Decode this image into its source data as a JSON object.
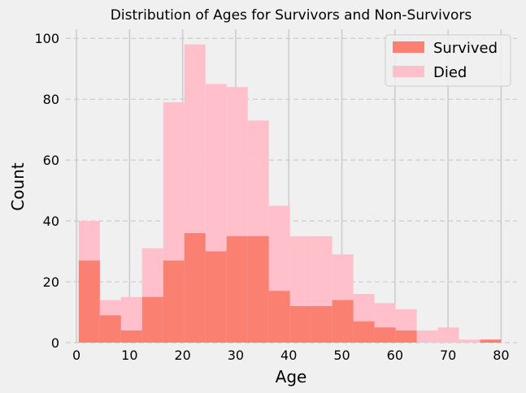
{
  "chart_data": {
    "type": "bar",
    "title": "Distribution of Ages for Survivors and Non-Survivors",
    "xlabel": "Age",
    "ylabel": "Count",
    "xlim": [
      -2,
      83
    ],
    "ylim": [
      0,
      103
    ],
    "xticks": [
      "0",
      "10",
      "20",
      "30",
      "40",
      "50",
      "60",
      "70",
      "80"
    ],
    "yticks": [
      "0",
      "20",
      "40",
      "60",
      "80",
      "100"
    ],
    "bin_edges": [
      0.42,
      4.4,
      8.38,
      12.36,
      16.34,
      20.32,
      24.3,
      28.28,
      32.26,
      36.24,
      40.22,
      44.2,
      48.18,
      52.16,
      56.14,
      60.12,
      64.1,
      68.08,
      72.06,
      76.04,
      80.0
    ],
    "series": [
      {
        "name": "Survived",
        "color": "#fa8072",
        "values": [
          27,
          9,
          4,
          15,
          27,
          36,
          30,
          35,
          35,
          17,
          12,
          12,
          14,
          7,
          5,
          4,
          0,
          0,
          0,
          1
        ]
      },
      {
        "name": "Died",
        "color": "#ffc0cb",
        "values": [
          40,
          14,
          15,
          31,
          79,
          98,
          85,
          84,
          73,
          45,
          35,
          35,
          29,
          16,
          13,
          11,
          4,
          5,
          1,
          1
        ]
      }
    ],
    "grid": true,
    "legend_position": "top-right"
  }
}
